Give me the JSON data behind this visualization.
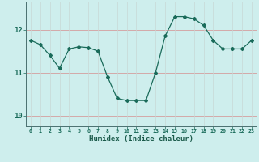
{
  "x": [
    0,
    1,
    2,
    3,
    4,
    5,
    6,
    7,
    8,
    9,
    10,
    11,
    12,
    13,
    14,
    15,
    16,
    17,
    18,
    19,
    20,
    21,
    22,
    23
  ],
  "y": [
    11.75,
    11.65,
    11.4,
    11.1,
    11.55,
    11.6,
    11.58,
    11.5,
    10.9,
    10.4,
    10.35,
    10.35,
    10.35,
    11.0,
    11.85,
    12.3,
    12.3,
    12.25,
    12.1,
    11.75,
    11.55,
    11.55,
    11.55,
    11.75
  ],
  "xlabel": "Humidex (Indice chaleur)",
  "yticks": [
    10,
    11,
    12
  ],
  "ylim": [
    9.75,
    12.65
  ],
  "xlim": [
    -0.5,
    23.5
  ],
  "line_color": "#1a6b5a",
  "marker": "D",
  "marker_size": 2.0,
  "bg_color": "#ceeeed",
  "grid_color_h": "#d4a8a8",
  "grid_color_v": "#c8d8d6",
  "tick_label_color": "#1a6b5a",
  "xlabel_color": "#1a5a4a",
  "axis_color": "#4a7070"
}
